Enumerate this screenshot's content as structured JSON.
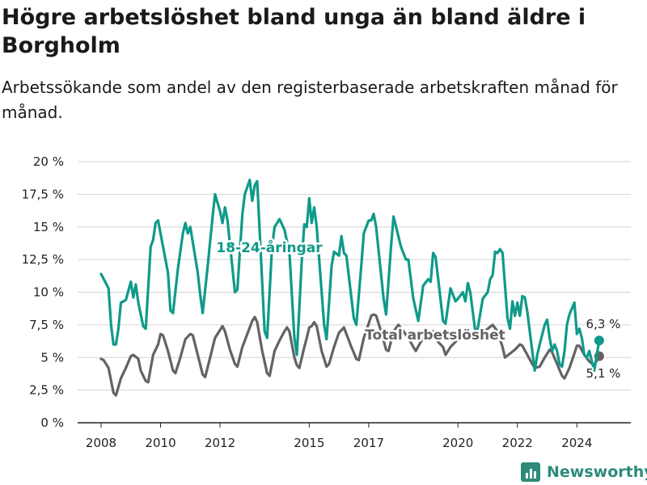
{
  "title": "Högre arbetslöshet bland unga än bland äldre i Borgholm",
  "subtitle": "Arbetssökande som andel av den registerbaserade arbetskraften månad för månad.",
  "brand": {
    "name": "Newsworthy",
    "icon": "newsworthy-logo-icon",
    "color": "#2e8b7a"
  },
  "chart_data": {
    "type": "line",
    "x_start": "2008-01",
    "x_end": "2024-12",
    "x_ticks": [
      "2008",
      "2010",
      "2012",
      "2015",
      "2017",
      "2020",
      "2022",
      "2024"
    ],
    "x_tick_years": [
      2008,
      2010,
      2012,
      2015,
      2017,
      2020,
      2022,
      2024
    ],
    "ylim": [
      0,
      20
    ],
    "y_ticks": [
      0,
      2.5,
      5,
      7.5,
      10,
      12.5,
      15,
      17.5,
      20
    ],
    "y_tick_labels": [
      "0 %",
      "2,5 %",
      "5 %",
      "7,5 %",
      "10 %",
      "12,5 %",
      "15 %",
      "17,5 %",
      "20 %"
    ],
    "grid": "horizontal",
    "series": [
      {
        "name": "18-24-åringar",
        "color": "#0f9a8a",
        "end_label": "6,3 %",
        "keypoints": [
          [
            "2008-01",
            11.4
          ],
          [
            "2008-04",
            10.3
          ],
          [
            "2008-05",
            7.5
          ],
          [
            "2008-06",
            6.0
          ],
          [
            "2008-07",
            6.0
          ],
          [
            "2008-08",
            7.2
          ],
          [
            "2008-09",
            9.2
          ],
          [
            "2008-11",
            9.4
          ],
          [
            "2009-01",
            10.8
          ],
          [
            "2009-02",
            9.6
          ],
          [
            "2009-03",
            10.6
          ],
          [
            "2009-04",
            9.2
          ],
          [
            "2009-06",
            7.4
          ],
          [
            "2009-07",
            7.2
          ],
          [
            "2009-09",
            13.5
          ],
          [
            "2009-10",
            14.0
          ],
          [
            "2009-11",
            15.3
          ],
          [
            "2009-12",
            15.5
          ],
          [
            "2010-01",
            14.5
          ],
          [
            "2010-04",
            11.5
          ],
          [
            "2010-05",
            8.6
          ],
          [
            "2010-06",
            8.4
          ],
          [
            "2010-08",
            11.8
          ],
          [
            "2010-10",
            14.5
          ],
          [
            "2010-11",
            15.3
          ],
          [
            "2010-12",
            14.5
          ],
          [
            "2011-01",
            15.0
          ],
          [
            "2011-04",
            11.5
          ],
          [
            "2011-05",
            9.8
          ],
          [
            "2011-06",
            8.4
          ],
          [
            "2011-08",
            12.0
          ],
          [
            "2011-10",
            15.8
          ],
          [
            "2011-11",
            17.5
          ],
          [
            "2012-01",
            16.2
          ],
          [
            "2012-02",
            15.3
          ],
          [
            "2012-03",
            16.5
          ],
          [
            "2012-04",
            15.5
          ],
          [
            "2012-07",
            10.0
          ],
          [
            "2012-08",
            10.2
          ],
          [
            "2012-10",
            16.0
          ],
          [
            "2012-11",
            17.5
          ],
          [
            "2013-01",
            18.6
          ],
          [
            "2013-02",
            17.0
          ],
          [
            "2013-03",
            18.2
          ],
          [
            "2013-04",
            18.5
          ],
          [
            "2013-07",
            7.0
          ],
          [
            "2013-08",
            6.5
          ],
          [
            "2013-10",
            13.5
          ],
          [
            "2013-11",
            15.0
          ],
          [
            "2014-01",
            15.6
          ],
          [
            "2014-03",
            14.8
          ],
          [
            "2014-05",
            13.0
          ],
          [
            "2014-07",
            6.5
          ],
          [
            "2014-08",
            5.2
          ],
          [
            "2014-10",
            12.5
          ],
          [
            "2014-11",
            15.2
          ],
          [
            "2014-12",
            15.0
          ],
          [
            "2015-01",
            17.2
          ],
          [
            "2015-02",
            15.3
          ],
          [
            "2015-03",
            16.5
          ],
          [
            "2015-04",
            15.0
          ],
          [
            "2015-07",
            7.5
          ],
          [
            "2015-08",
            6.4
          ],
          [
            "2015-10",
            12.0
          ],
          [
            "2015-11",
            13.1
          ],
          [
            "2016-01",
            12.8
          ],
          [
            "2016-02",
            14.3
          ],
          [
            "2016-03",
            13.0
          ],
          [
            "2016-04",
            12.8
          ],
          [
            "2016-07",
            8.0
          ],
          [
            "2016-08",
            7.5
          ],
          [
            "2016-10",
            12.0
          ],
          [
            "2016-11",
            14.5
          ],
          [
            "2017-01",
            15.5
          ],
          [
            "2017-02",
            15.5
          ],
          [
            "2017-03",
            16.0
          ],
          [
            "2017-04",
            15.0
          ],
          [
            "2017-07",
            9.5
          ],
          [
            "2017-08",
            8.3
          ],
          [
            "2017-10",
            13.5
          ],
          [
            "2017-11",
            15.8
          ],
          [
            "2018-02",
            13.5
          ],
          [
            "2018-04",
            12.5
          ],
          [
            "2018-05",
            12.5
          ],
          [
            "2018-07",
            9.5
          ],
          [
            "2018-09",
            7.8
          ],
          [
            "2018-11",
            10.5
          ],
          [
            "2019-01",
            11.0
          ],
          [
            "2019-02",
            10.8
          ],
          [
            "2019-03",
            13.0
          ],
          [
            "2019-04",
            12.7
          ],
          [
            "2019-07",
            7.8
          ],
          [
            "2019-08",
            7.6
          ],
          [
            "2019-10",
            10.3
          ],
          [
            "2019-12",
            9.3
          ],
          [
            "2020-01",
            9.5
          ],
          [
            "2020-03",
            10.0
          ],
          [
            "2020-04",
            9.3
          ],
          [
            "2020-05",
            10.7
          ],
          [
            "2020-06",
            10.0
          ],
          [
            "2020-08",
            7.0
          ],
          [
            "2020-09",
            7.2
          ],
          [
            "2020-11",
            9.5
          ],
          [
            "2021-01",
            10.0
          ],
          [
            "2021-02",
            11.0
          ],
          [
            "2021-03",
            11.3
          ],
          [
            "2021-04",
            13.1
          ],
          [
            "2021-05",
            13.0
          ],
          [
            "2021-06",
            13.3
          ],
          [
            "2021-07",
            13.0
          ],
          [
            "2021-09",
            8.0
          ],
          [
            "2021-10",
            7.2
          ],
          [
            "2021-11",
            9.3
          ],
          [
            "2021-12",
            8.2
          ],
          [
            "2022-01",
            9.2
          ],
          [
            "2022-02",
            8.2
          ],
          [
            "2022-03",
            9.7
          ],
          [
            "2022-04",
            9.6
          ],
          [
            "2022-05",
            8.5
          ],
          [
            "2022-07",
            5.5
          ],
          [
            "2022-08",
            4.0
          ],
          [
            "2022-09",
            5.2
          ],
          [
            "2022-10",
            6.0
          ],
          [
            "2022-12",
            7.5
          ],
          [
            "2023-01",
            7.9
          ],
          [
            "2023-02",
            6.5
          ],
          [
            "2023-03",
            5.5
          ],
          [
            "2023-04",
            6.0
          ],
          [
            "2023-05",
            5.5
          ],
          [
            "2023-06",
            4.5
          ],
          [
            "2023-07",
            4.3
          ],
          [
            "2023-08",
            5.5
          ],
          [
            "2023-09",
            7.5
          ],
          [
            "2023-10",
            8.3
          ],
          [
            "2023-12",
            9.2
          ],
          [
            "2024-01",
            6.8
          ],
          [
            "2024-02",
            7.2
          ],
          [
            "2024-03",
            6.5
          ],
          [
            "2024-04",
            5.2
          ],
          [
            "2024-05",
            5.0
          ],
          [
            "2024-06",
            5.5
          ],
          [
            "2024-08",
            4.0
          ],
          [
            "2024-10",
            6.3
          ]
        ]
      },
      {
        "name": "Total arbetslöshet",
        "color": "#636366",
        "end_label": "5,1 %",
        "keypoints": [
          [
            "2008-01",
            4.9
          ],
          [
            "2008-02",
            4.8
          ],
          [
            "2008-04",
            4.2
          ],
          [
            "2008-06",
            2.3
          ],
          [
            "2008-07",
            2.1
          ],
          [
            "2008-09",
            3.4
          ],
          [
            "2008-11",
            4.2
          ],
          [
            "2009-01",
            5.1
          ],
          [
            "2009-02",
            5.2
          ],
          [
            "2009-04",
            4.9
          ],
          [
            "2009-05",
            4.0
          ],
          [
            "2009-07",
            3.2
          ],
          [
            "2009-08",
            3.1
          ],
          [
            "2009-10",
            5.2
          ],
          [
            "2009-12",
            6.0
          ],
          [
            "2010-01",
            6.8
          ],
          [
            "2010-02",
            6.7
          ],
          [
            "2010-04",
            5.5
          ],
          [
            "2010-06",
            4.0
          ],
          [
            "2010-07",
            3.8
          ],
          [
            "2010-09",
            5.0
          ],
          [
            "2010-11",
            6.4
          ],
          [
            "2011-01",
            6.8
          ],
          [
            "2011-02",
            6.7
          ],
          [
            "2011-04",
            5.2
          ],
          [
            "2011-06",
            3.7
          ],
          [
            "2011-07",
            3.5
          ],
          [
            "2011-09",
            5.0
          ],
          [
            "2011-11",
            6.5
          ],
          [
            "2012-02",
            7.4
          ],
          [
            "2012-03",
            7.0
          ],
          [
            "2012-05",
            5.6
          ],
          [
            "2012-07",
            4.5
          ],
          [
            "2012-08",
            4.3
          ],
          [
            "2012-10",
            5.8
          ],
          [
            "2012-12",
            6.8
          ],
          [
            "2013-02",
            7.8
          ],
          [
            "2013-03",
            8.1
          ],
          [
            "2013-04",
            7.7
          ],
          [
            "2013-06",
            5.5
          ],
          [
            "2013-08",
            3.8
          ],
          [
            "2013-09",
            3.6
          ],
          [
            "2013-11",
            5.5
          ],
          [
            "2014-01",
            6.3
          ],
          [
            "2014-03",
            7.0
          ],
          [
            "2014-04",
            7.3
          ],
          [
            "2014-05",
            7.0
          ],
          [
            "2014-07",
            5.0
          ],
          [
            "2014-08",
            4.4
          ],
          [
            "2014-09",
            4.2
          ],
          [
            "2014-11",
            5.8
          ],
          [
            "2014-12",
            6.5
          ],
          [
            "2015-01",
            7.3
          ],
          [
            "2015-02",
            7.4
          ],
          [
            "2015-03",
            7.7
          ],
          [
            "2015-04",
            7.4
          ],
          [
            "2015-06",
            5.5
          ],
          [
            "2015-08",
            4.3
          ],
          [
            "2015-09",
            4.5
          ],
          [
            "2015-11",
            5.8
          ],
          [
            "2016-01",
            6.9
          ],
          [
            "2016-03",
            7.3
          ],
          [
            "2016-04",
            6.8
          ],
          [
            "2016-06",
            5.8
          ],
          [
            "2016-08",
            4.9
          ],
          [
            "2016-09",
            4.8
          ],
          [
            "2016-11",
            6.5
          ],
          [
            "2017-01",
            7.6
          ],
          [
            "2017-02",
            8.2
          ],
          [
            "2017-03",
            8.3
          ],
          [
            "2017-04",
            8.2
          ],
          [
            "2017-06",
            7.0
          ],
          [
            "2017-08",
            5.6
          ],
          [
            "2017-09",
            5.5
          ],
          [
            "2017-11",
            7.0
          ],
          [
            "2018-01",
            7.5
          ],
          [
            "2018-03",
            7.0
          ],
          [
            "2018-05",
            6.5
          ],
          [
            "2018-07",
            5.8
          ],
          [
            "2018-08",
            5.5
          ],
          [
            "2018-10",
            6.2
          ],
          [
            "2018-12",
            6.7
          ],
          [
            "2019-03",
            7.0
          ],
          [
            "2019-05",
            6.2
          ],
          [
            "2019-07",
            5.8
          ],
          [
            "2019-08",
            5.2
          ],
          [
            "2019-10",
            5.8
          ],
          [
            "2019-12",
            6.2
          ],
          [
            "2020-03",
            6.8
          ],
          [
            "2020-05",
            7.0
          ],
          [
            "2020-07",
            6.5
          ],
          [
            "2020-09",
            6.6
          ],
          [
            "2020-11",
            6.9
          ],
          [
            "2021-01",
            7.2
          ],
          [
            "2021-03",
            7.5
          ],
          [
            "2021-05",
            7.0
          ],
          [
            "2021-07",
            5.8
          ],
          [
            "2021-08",
            5.0
          ],
          [
            "2021-10",
            5.3
          ],
          [
            "2021-12",
            5.6
          ],
          [
            "2022-02",
            6.0
          ],
          [
            "2022-03",
            5.9
          ],
          [
            "2022-05",
            5.2
          ],
          [
            "2022-07",
            4.5
          ],
          [
            "2022-08",
            4.2
          ],
          [
            "2022-10",
            4.3
          ],
          [
            "2022-12",
            5.0
          ],
          [
            "2023-02",
            5.6
          ],
          [
            "2023-03",
            5.4
          ],
          [
            "2023-05",
            4.5
          ],
          [
            "2023-07",
            3.6
          ],
          [
            "2023-08",
            3.4
          ],
          [
            "2023-10",
            4.2
          ],
          [
            "2023-12",
            5.3
          ],
          [
            "2024-01",
            5.9
          ],
          [
            "2024-02",
            5.9
          ],
          [
            "2024-04",
            5.2
          ],
          [
            "2024-06",
            4.7
          ],
          [
            "2024-08",
            4.4
          ],
          [
            "2024-10",
            5.1
          ]
        ]
      }
    ]
  }
}
